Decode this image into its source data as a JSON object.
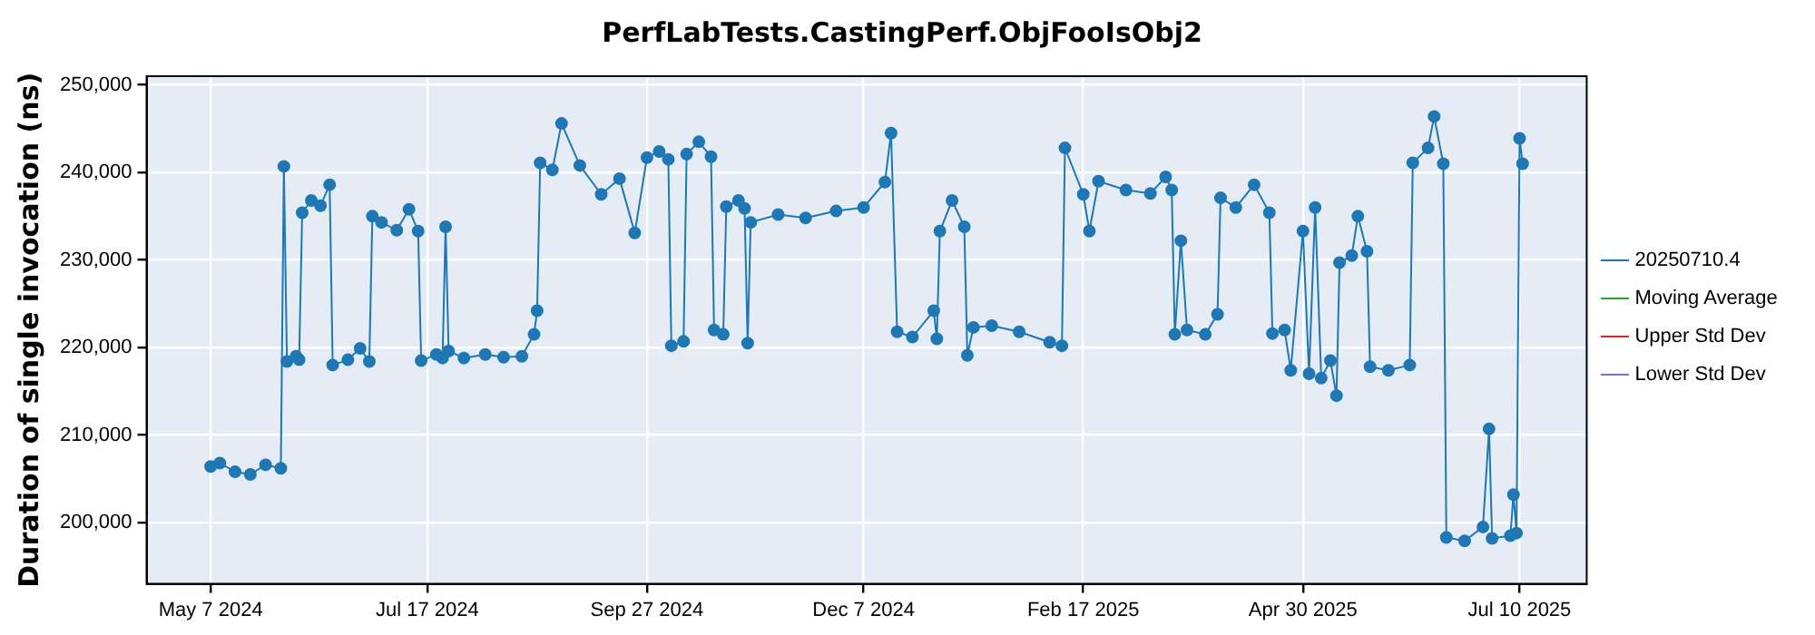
{
  "chart_data": {
    "type": "line",
    "title": "PerfLabTests.CastingPerf.ObjFooIsObj2",
    "ylabel": "Duration of single invocation (ns)",
    "x": [
      "2024-05-07",
      "2024-05-10",
      "2024-05-15",
      "2024-05-20",
      "2024-05-25",
      "2024-05-30",
      "2024-05-31",
      "2024-06-01",
      "2024-06-04",
      "2024-06-05",
      "2024-06-06",
      "2024-06-09",
      "2024-06-12",
      "2024-06-15",
      "2024-06-16",
      "2024-06-21",
      "2024-06-25",
      "2024-06-28",
      "2024-06-29",
      "2024-07-02",
      "2024-07-07",
      "2024-07-11",
      "2024-07-14",
      "2024-07-15",
      "2024-07-20",
      "2024-07-22",
      "2024-07-23",
      "2024-07-24",
      "2024-07-29",
      "2024-08-05",
      "2024-08-11",
      "2024-08-17",
      "2024-08-21",
      "2024-08-22",
      "2024-08-23",
      "2024-08-27",
      "2024-08-30",
      "2024-09-05",
      "2024-09-12",
      "2024-09-18",
      "2024-09-23",
      "2024-09-27",
      "2024-10-01",
      "2024-10-04",
      "2024-10-05",
      "2024-10-09",
      "2024-10-10",
      "2024-10-14",
      "2024-10-18",
      "2024-10-19",
      "2024-10-22",
      "2024-10-23",
      "2024-10-27",
      "2024-10-29",
      "2024-10-30",
      "2024-10-31",
      "2024-11-09",
      "2024-11-18",
      "2024-11-28",
      "2024-12-07",
      "2024-12-14",
      "2024-12-16",
      "2024-12-18",
      "2024-12-23",
      "2024-12-30",
      "2024-12-31",
      "2025-01-01",
      "2025-01-05",
      "2025-01-09",
      "2025-01-10",
      "2025-01-12",
      "2025-01-18",
      "2025-01-27",
      "2025-02-06",
      "2025-02-10",
      "2025-02-11",
      "2025-02-17",
      "2025-02-19",
      "2025-02-22",
      "2025-03-03",
      "2025-03-11",
      "2025-03-16",
      "2025-03-18",
      "2025-03-19",
      "2025-03-21",
      "2025-03-23",
      "2025-03-29",
      "2025-04-02",
      "2025-04-03",
      "2025-04-08",
      "2025-04-14",
      "2025-04-19",
      "2025-04-20",
      "2025-04-24",
      "2025-04-26",
      "2025-04-30",
      "2025-05-02",
      "2025-05-04",
      "2025-05-06",
      "2025-05-09",
      "2025-05-11",
      "2025-05-12",
      "2025-05-16",
      "2025-05-18",
      "2025-05-21",
      "2025-05-22",
      "2025-05-28",
      "2025-06-04",
      "2025-06-05",
      "2025-06-10",
      "2025-06-12",
      "2025-06-15",
      "2025-06-16",
      "2025-06-22",
      "2025-06-28",
      "2025-06-30",
      "2025-07-01",
      "2025-07-07",
      "2025-07-08",
      "2025-07-09",
      "2025-07-10",
      "2025-07-11"
    ],
    "series": [
      {
        "name": "20250710.4",
        "color": "#1f77b4",
        "values": [
          206400,
          206800,
          205800,
          205500,
          206600,
          206200,
          240700,
          218400,
          219000,
          218600,
          235400,
          236800,
          236200,
          238600,
          218000,
          218600,
          219900,
          218400,
          235000,
          234300,
          233400,
          235800,
          233300,
          218500,
          219200,
          218800,
          233800,
          219600,
          218800,
          219200,
          218900,
          219000,
          221500,
          224200,
          241100,
          240300,
          245600,
          240800,
          237500,
          239300,
          233100,
          241700,
          242400,
          241500,
          220200,
          220700,
          242100,
          243500,
          241800,
          222000,
          221500,
          236100,
          236800,
          235900,
          220500,
          234300,
          235200,
          234800,
          235600,
          236000,
          238900,
          244500,
          221800,
          221200,
          224200,
          221000,
          233300,
          236800,
          233800,
          219100,
          222300,
          222500,
          221800,
          220600,
          220200,
          242800,
          237500,
          233300,
          239000,
          238000,
          237600,
          239500,
          238000,
          221500,
          232200,
          222000,
          221500,
          223800,
          237100,
          236000,
          238600,
          235400,
          221600,
          222000,
          217400,
          233300,
          217000,
          236000,
          216500,
          218500,
          214500,
          229700,
          230500,
          235000,
          231000,
          217800,
          217400,
          218000,
          241100,
          242800,
          246400,
          241000,
          198300,
          197900,
          199500,
          210700,
          198200,
          198500,
          203200,
          198800,
          243900,
          241000
        ]
      },
      {
        "name": "Moving Average",
        "color": "#2ca02c",
        "values": [
          null,
          null,
          null,
          null,
          null,
          null,
          null,
          null,
          null,
          null,
          null,
          null,
          null,
          null,
          null,
          null,
          null,
          null,
          null,
          null,
          null,
          null,
          null,
          null,
          null,
          null,
          null,
          null,
          null,
          null,
          null,
          null,
          null,
          null,
          null,
          null,
          null,
          null,
          null,
          null,
          null,
          null,
          null,
          null,
          null,
          null,
          null,
          null,
          null,
          null,
          null,
          null,
          null,
          null,
          null,
          null,
          null,
          null,
          null,
          null,
          null,
          null,
          null,
          null,
          null,
          null,
          null,
          null,
          null,
          null,
          null,
          null,
          null,
          null,
          null,
          null,
          null,
          null,
          null,
          null,
          null,
          null,
          null,
          null,
          null,
          null,
          null,
          null,
          null,
          null,
          null,
          null,
          null,
          null,
          null,
          null,
          null,
          null,
          null,
          null,
          null,
          null,
          null,
          null,
          null,
          null,
          null,
          null,
          null,
          null,
          null,
          null,
          null,
          null,
          null,
          null,
          null,
          null,
          null,
          null,
          null,
          null
        ]
      },
      {
        "name": "Upper Std Dev",
        "color": "#d62728",
        "values": [
          null,
          null,
          null,
          null,
          null,
          null,
          null,
          null,
          null,
          null,
          null,
          null,
          null,
          null,
          null,
          null,
          null,
          null,
          null,
          null,
          null,
          null,
          null,
          null,
          null,
          null,
          null,
          null,
          null,
          null,
          null,
          null,
          null,
          null,
          null,
          null,
          null,
          null,
          null,
          null,
          null,
          null,
          null,
          null,
          null,
          null,
          null,
          null,
          null,
          null,
          null,
          null,
          null,
          null,
          null,
          null,
          null,
          null,
          null,
          null,
          null,
          null,
          null,
          null,
          null,
          null,
          null,
          null,
          null,
          null,
          null,
          null,
          null,
          null,
          null,
          null,
          null,
          null,
          null,
          null,
          null,
          null,
          null,
          null,
          null,
          null,
          null,
          null,
          null,
          null,
          null,
          null,
          null,
          null,
          null,
          null,
          null,
          null,
          null,
          null,
          null,
          null,
          null,
          null,
          null,
          null,
          null,
          null,
          null,
          null,
          null,
          null,
          null,
          null,
          null,
          null,
          null,
          null,
          null,
          null,
          null,
          null
        ]
      },
      {
        "name": "Lower Std Dev",
        "color": "#9467bd",
        "values": [
          null,
          null,
          null,
          null,
          null,
          null,
          null,
          null,
          null,
          null,
          null,
          null,
          null,
          null,
          null,
          null,
          null,
          null,
          null,
          null,
          null,
          null,
          null,
          null,
          null,
          null,
          null,
          null,
          null,
          null,
          null,
          null,
          null,
          null,
          null,
          null,
          null,
          null,
          null,
          null,
          null,
          null,
          null,
          null,
          null,
          null,
          null,
          null,
          null,
          null,
          null,
          null,
          null,
          null,
          null,
          null,
          null,
          null,
          null,
          null,
          null,
          null,
          null,
          null,
          null,
          null,
          null,
          null,
          null,
          null,
          null,
          null,
          null,
          null,
          null,
          null,
          null,
          null,
          null,
          null,
          null,
          null,
          null,
          null,
          null,
          null,
          null,
          null,
          null,
          null,
          null,
          null,
          null,
          null,
          null,
          null,
          null,
          null,
          null,
          null,
          null,
          null,
          null,
          null,
          null,
          null,
          null,
          null,
          null,
          null,
          null,
          null,
          null,
          null,
          null,
          null,
          null,
          null,
          null,
          null,
          null,
          null
        ]
      }
    ],
    "xlim": [
      "2024-04-16",
      "2025-08-01"
    ],
    "xticks": [
      {
        "value": "2024-05-07",
        "label": "May 7 2024"
      },
      {
        "value": "2024-07-17",
        "label": "Jul 17 2024"
      },
      {
        "value": "2024-09-27",
        "label": "Sep 27 2024"
      },
      {
        "value": "2024-12-07",
        "label": "Dec 7 2024"
      },
      {
        "value": "2025-02-17",
        "label": "Feb 17 2025"
      },
      {
        "value": "2025-04-30",
        "label": "Apr 30 2025"
      },
      {
        "value": "2025-07-10",
        "label": "Jul 10 2025"
      }
    ],
    "ylim": [
      193000,
      251000
    ],
    "yticks": [
      {
        "value": 200000,
        "label": "200,000"
      },
      {
        "value": 210000,
        "label": "210,000"
      },
      {
        "value": 220000,
        "label": "220,000"
      },
      {
        "value": 230000,
        "label": "230,000"
      },
      {
        "value": 240000,
        "label": "240,000"
      },
      {
        "value": 250000,
        "label": "250,000"
      }
    ],
    "grid": true,
    "legend": "right",
    "marker": "circle",
    "line_style": "solid"
  }
}
